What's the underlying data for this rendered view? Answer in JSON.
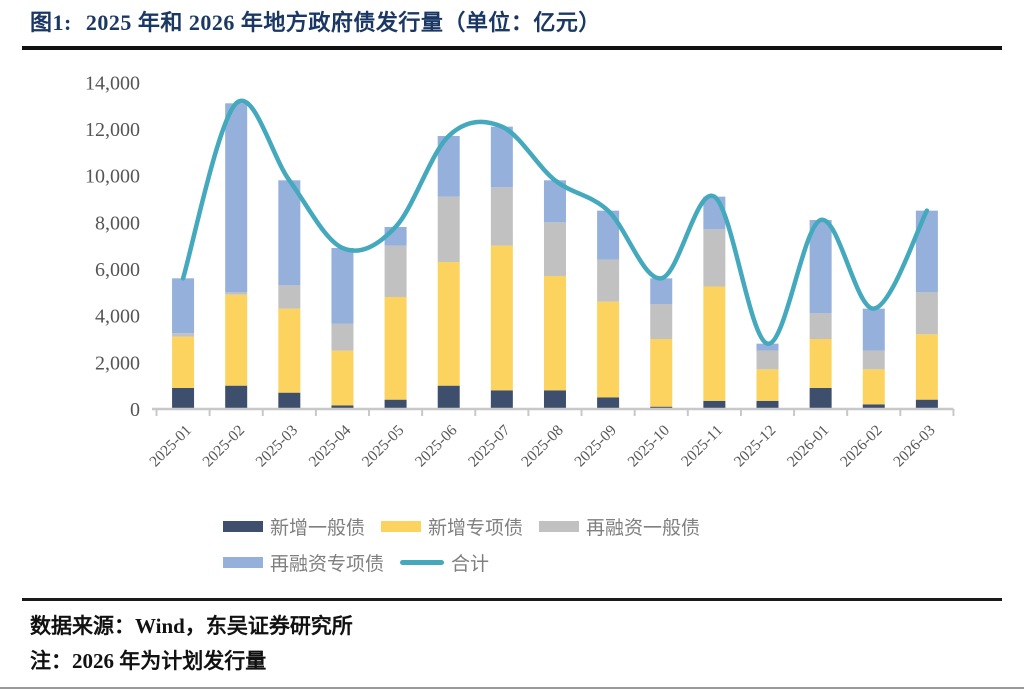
{
  "title": {
    "label": "图1:",
    "text": "2025 年和 2026 年地方政府债发行量（单位：亿元）"
  },
  "footer": {
    "source": "数据来源：Wind，东吴证券研究所",
    "note": "注：2026 年为计划发行量"
  },
  "colors": {
    "title": "#1b3864",
    "new_general": "#3d4f6d",
    "new_special": "#fbd35e",
    "refi_general": "#c1c1c1",
    "refi_special": "#94b0db",
    "total_line": "#45a9be",
    "axis": "#c8c8c8",
    "axis_text": "#555555"
  },
  "chart_data": {
    "type": "bar",
    "subtype": "stacked-bar-with-line",
    "title": "2025 年和 2026 年地方政府债发行量",
    "unit": "亿元",
    "xlabel": "",
    "ylabel": "",
    "ylim": [
      0,
      14000
    ],
    "grid": false,
    "legend_position": "bottom",
    "categories": [
      "2025-01",
      "2025-02",
      "2025-03",
      "2025-04",
      "2025-05",
      "2025-06",
      "2025-07",
      "2025-08",
      "2025-09",
      "2025-10",
      "2025-11",
      "2025-12",
      "2026-01",
      "2026-02",
      "2026-03"
    ],
    "yticks": [
      {
        "value": 0,
        "label": "0"
      },
      {
        "value": 2000,
        "label": "2,000"
      },
      {
        "value": 4000,
        "label": "4,000"
      },
      {
        "value": 6000,
        "label": "6,000"
      },
      {
        "value": 8000,
        "label": "8,000"
      },
      {
        "value": 10000,
        "label": "10,000"
      },
      {
        "value": 12000,
        "label": "12,000"
      },
      {
        "value": 14000,
        "label": "14,000"
      }
    ],
    "series": [
      {
        "name": "新增一般债",
        "type": "bar",
        "color": "#3d4f6d",
        "values": [
          900,
          1000,
          700,
          150,
          400,
          1000,
          800,
          800,
          500,
          100,
          350,
          350,
          900,
          200,
          400
        ]
      },
      {
        "name": "新增专项债",
        "type": "bar",
        "color": "#fbd35e",
        "values": [
          2200,
          3900,
          3600,
          2350,
          4400,
          5300,
          6200,
          4900,
          4100,
          2900,
          4900,
          1350,
          2100,
          1500,
          2800
        ]
      },
      {
        "name": "再融资一般债",
        "type": "bar",
        "color": "#c1c1c1",
        "values": [
          150,
          100,
          1000,
          1150,
          2200,
          2800,
          2500,
          2300,
          1800,
          1500,
          2450,
          800,
          1100,
          800,
          1800
        ]
      },
      {
        "name": "再融资专项债",
        "type": "bar",
        "color": "#94b0db",
        "values": [
          2350,
          8100,
          4500,
          3250,
          800,
          2600,
          2600,
          1800,
          2100,
          1100,
          1400,
          300,
          4000,
          1800,
          3500
        ]
      },
      {
        "name": "合计",
        "type": "line",
        "color": "#45a9be",
        "values": [
          5600,
          13100,
          9800,
          6900,
          7800,
          11700,
          12100,
          9800,
          8500,
          5600,
          9100,
          2800,
          8100,
          4300,
          8500
        ]
      }
    ]
  }
}
